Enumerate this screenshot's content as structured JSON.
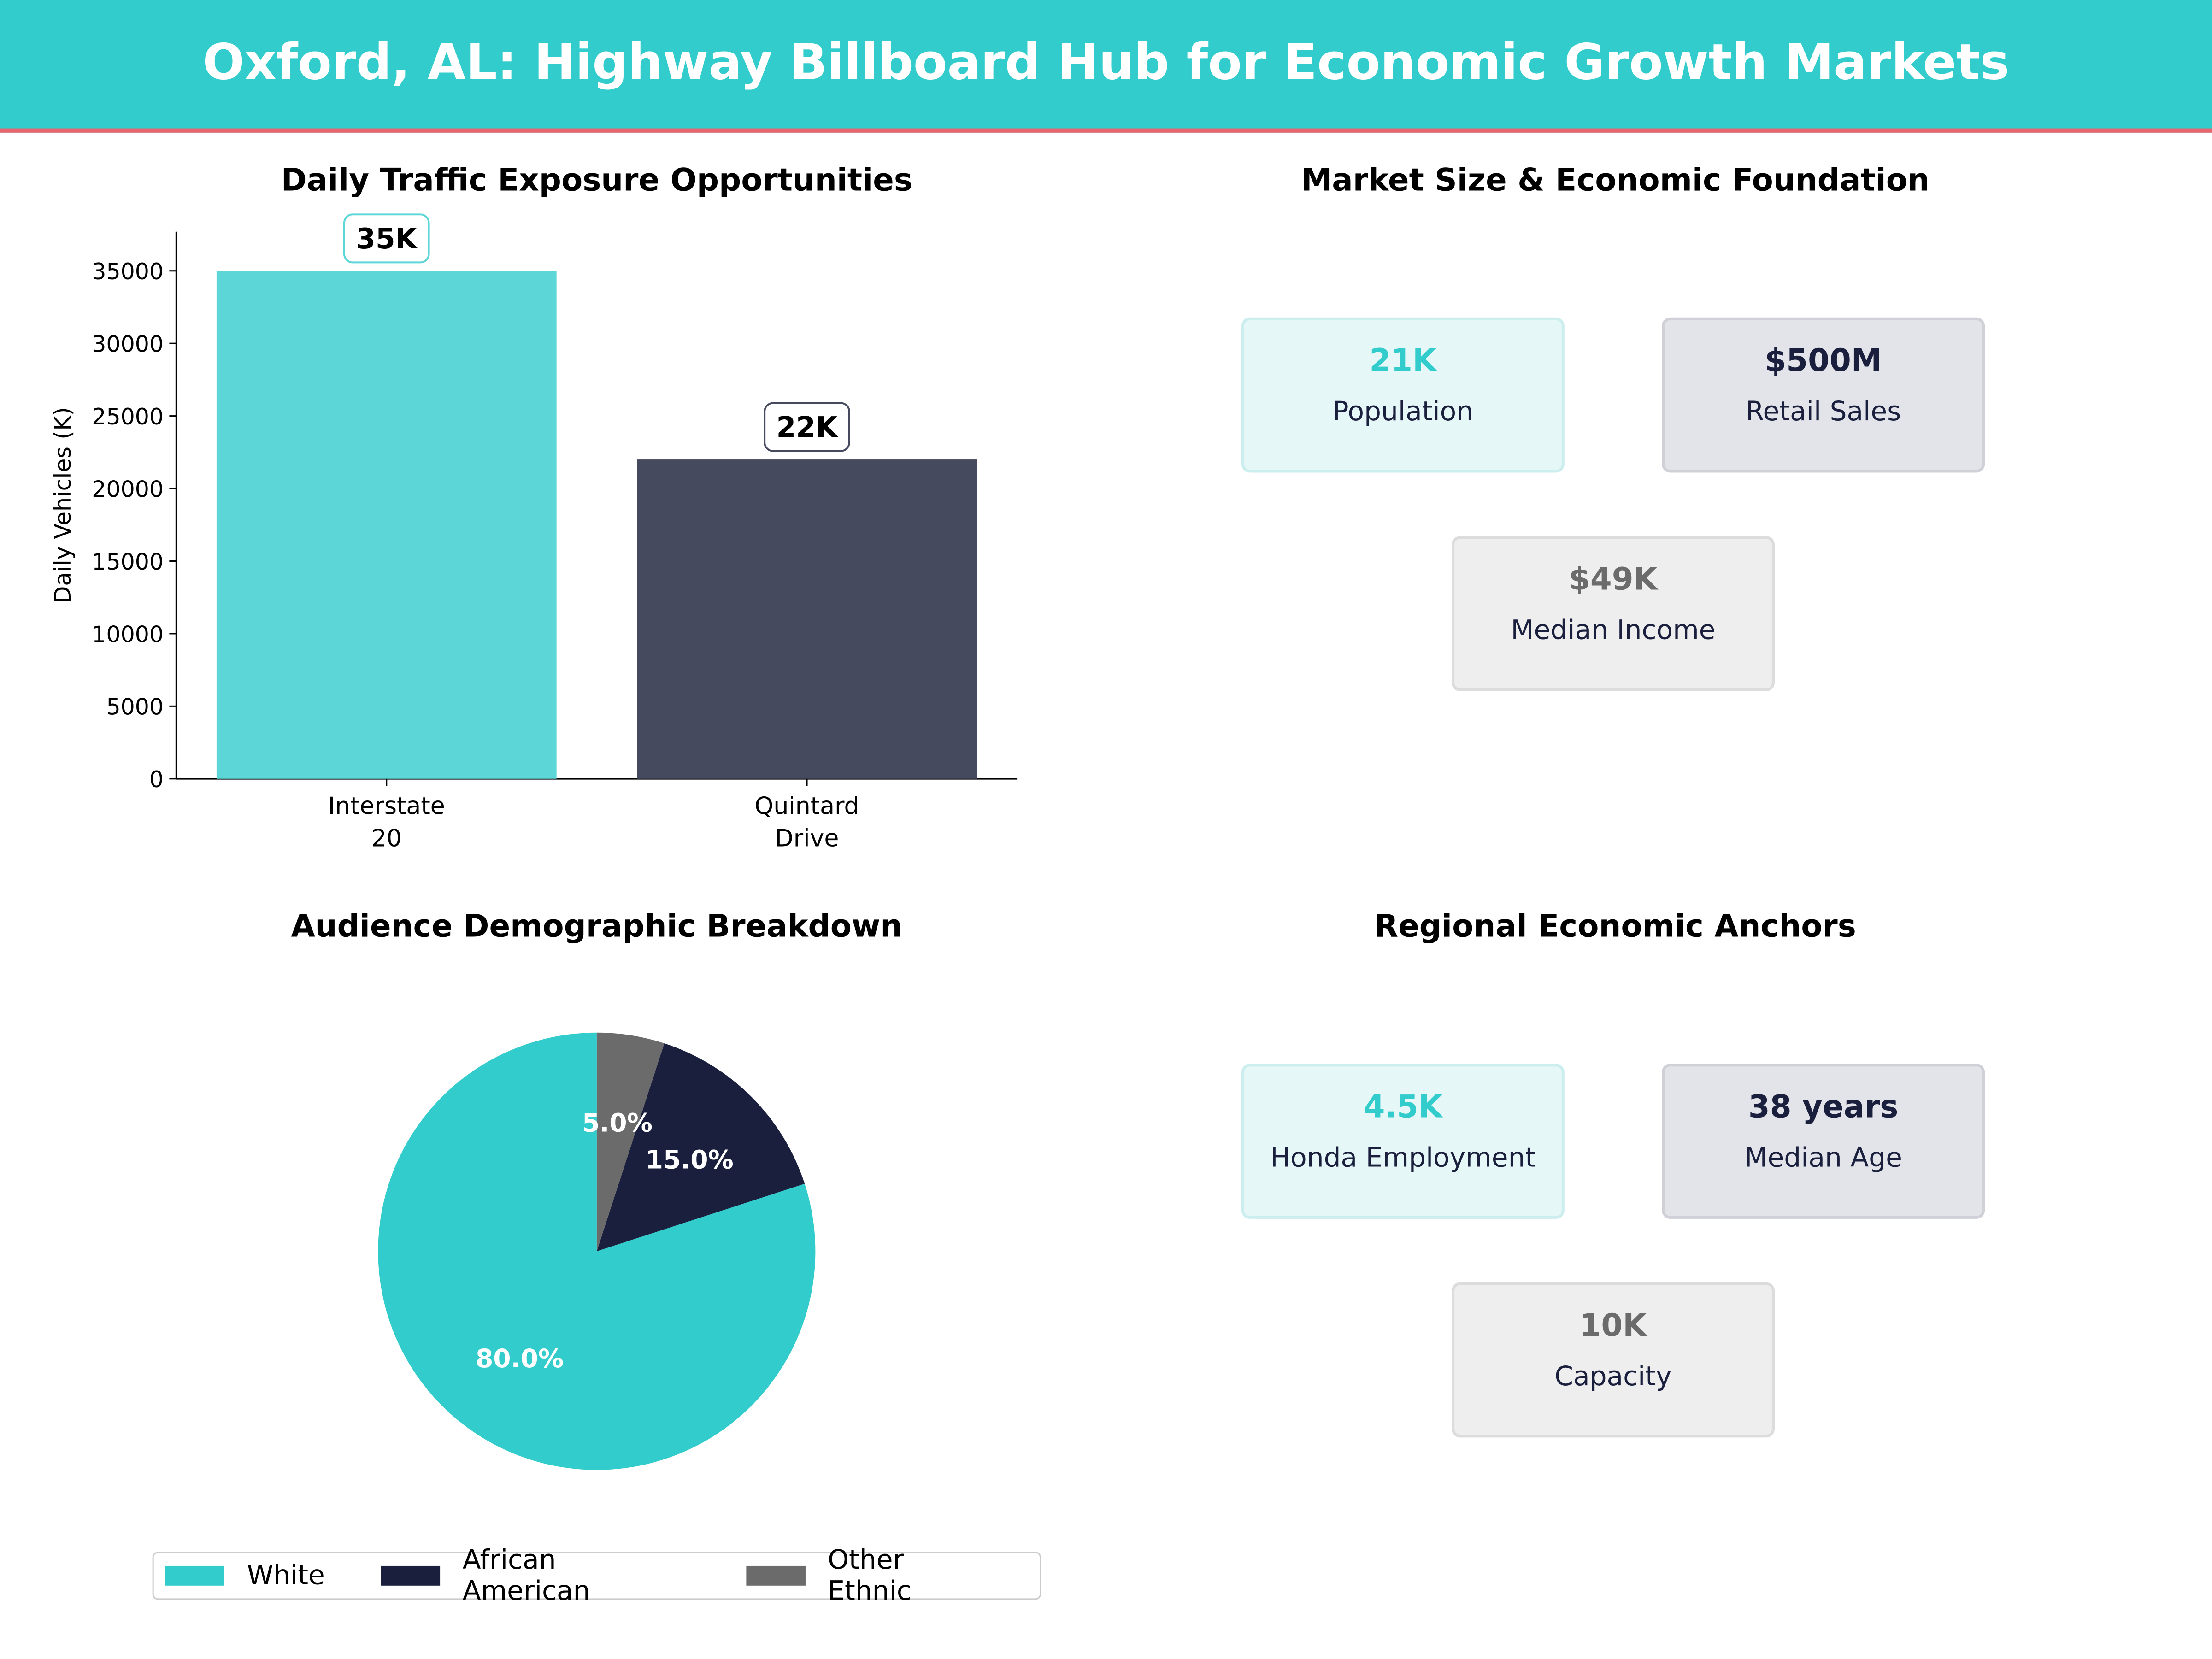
{
  "title": "Oxford, AL: Highway Billboard Hub for Economic Growth Markets",
  "colors": {
    "teal": "#33cccc",
    "navy": "#1a1f3d",
    "gray": "#6b6b6b",
    "accent_line": "#e8646e"
  },
  "chart_data": [
    {
      "type": "bar",
      "title": "Daily Traffic Exposure Opportunities",
      "xlabel": "",
      "ylabel": "Daily Vehicles (K)",
      "categories": [
        "Interstate\n20",
        "Quintard\nDrive"
      ],
      "category_lines": [
        [
          "Interstate",
          "20"
        ],
        [
          "Quintard",
          "Drive"
        ]
      ],
      "values": [
        35000,
        22000
      ],
      "data_labels": [
        "35K",
        "22K"
      ],
      "bar_colors": [
        "#5cd6d6",
        "#464a5f"
      ],
      "yticks": [
        "0",
        "5000",
        "10000",
        "15000",
        "20000",
        "25000",
        "30000",
        "35000"
      ],
      "ylim": [
        0,
        37700
      ],
      "grid": false
    },
    {
      "type": "pie",
      "title": "Audience Demographic Breakdown",
      "labels": [
        "White",
        "African American",
        "Other Ethnic"
      ],
      "values": [
        80.0,
        15.0,
        5.0
      ],
      "data_labels": [
        "80.0%",
        "15.0%",
        "5.0%"
      ],
      "slice_colors": [
        "#33cccc",
        "#1a1f3d",
        "#6b6b6b"
      ],
      "legend_position": "bottom"
    }
  ],
  "market": {
    "title": "Market Size & Economic Foundation",
    "cards": [
      {
        "value": "21K",
        "label": "Population"
      },
      {
        "value": "$500M",
        "label": "Retail Sales"
      },
      {
        "value": "$49K",
        "label": "Median Income"
      }
    ]
  },
  "anchors": {
    "title": "Regional Economic Anchors",
    "cards": [
      {
        "value": "4.5K",
        "label": "Honda Employment"
      },
      {
        "value": "38 years",
        "label": "Median Age"
      },
      {
        "value": "10K",
        "label": "Capacity"
      }
    ]
  }
}
